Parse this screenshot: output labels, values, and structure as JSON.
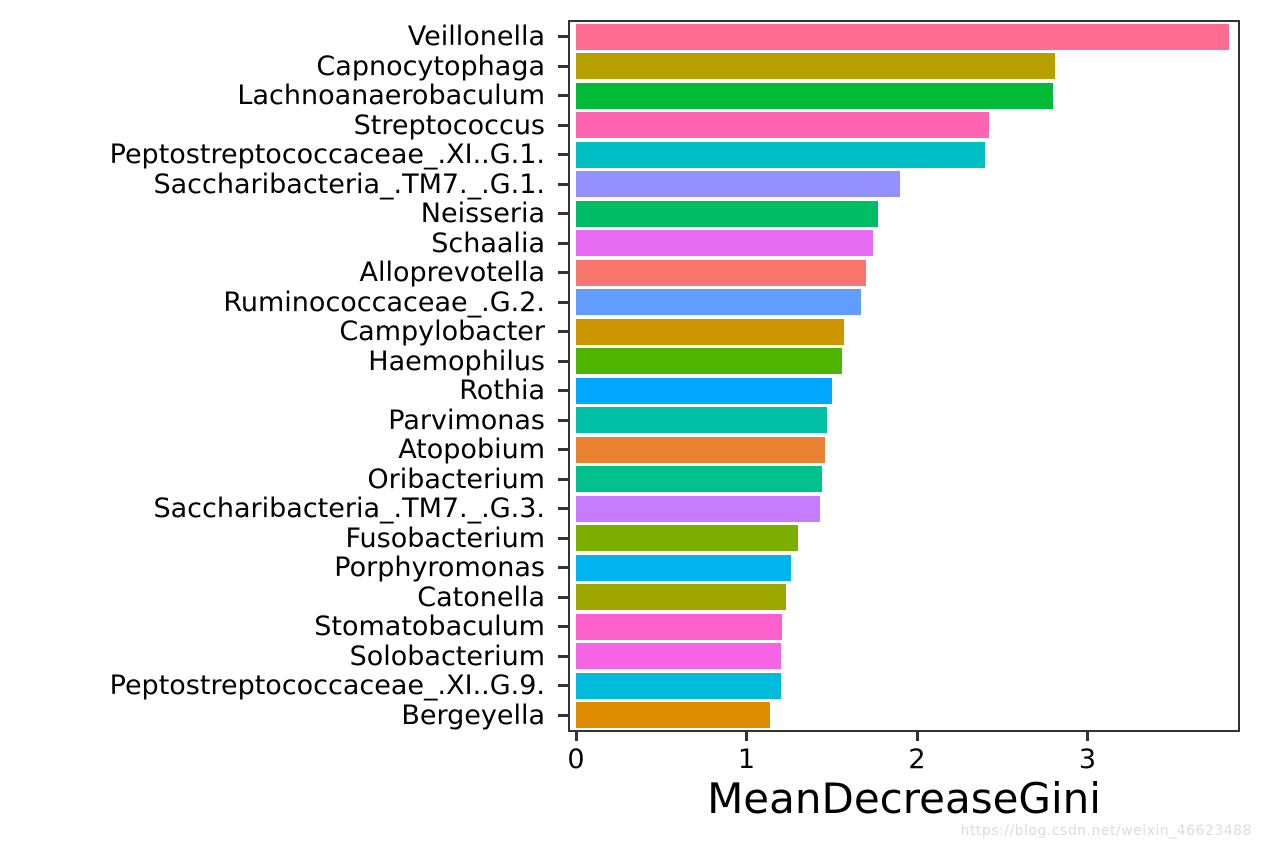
{
  "chart_data": {
    "type": "bar",
    "orientation": "horizontal",
    "title": "",
    "xlabel": "MeanDecreaseGini",
    "ylabel": "",
    "x_ticks": [
      0,
      1,
      2,
      3
    ],
    "xlim": [
      0,
      3.88
    ],
    "grid": "off",
    "legend": "none",
    "categories": [
      "Veillonella",
      "Capnocytophaga",
      "Lachnoanaerobaculum",
      "Streptococcus",
      "Peptostreptococcaceae_.XI..G.1.",
      "Saccharibacteria_.TM7._.G.1.",
      "Neisseria",
      "Schaalia",
      "Alloprevotella",
      "Ruminococcaceae_.G.2.",
      "Campylobacter",
      "Haemophilus",
      "Rothia",
      "Parvimonas",
      "Atopobium",
      "Oribacterium",
      "Saccharibacteria_.TM7._.G.3.",
      "Fusobacterium",
      "Porphyromonas",
      "Catonella",
      "Stomatobaculum",
      "Solobacterium",
      "Peptostreptococcaceae_.XI..G.9.",
      "Bergeyella"
    ],
    "values": [
      3.83,
      2.81,
      2.8,
      2.42,
      2.4,
      1.9,
      1.77,
      1.74,
      1.7,
      1.67,
      1.57,
      1.56,
      1.5,
      1.47,
      1.46,
      1.44,
      1.43,
      1.3,
      1.26,
      1.23,
      1.21,
      1.2,
      1.2,
      1.14
    ],
    "colors": [
      "#FF6C91",
      "#B79F00",
      "#00BA38",
      "#FF64B0",
      "#00BFC4",
      "#9590FF",
      "#00BE67",
      "#E76BF3",
      "#F8766D",
      "#619CFF",
      "#CD9600",
      "#4FB400",
      "#00A9FF",
      "#00C1A7",
      "#EA8331",
      "#00C08B",
      "#C77CFF",
      "#7CAE00",
      "#00B4F0",
      "#9DA700",
      "#FF61CC",
      "#F564E3",
      "#00BBDC",
      "#DE8C00"
    ]
  },
  "style": {
    "panel_border": "#333333",
    "tick_color": "#333333",
    "text_color": "#000000",
    "watermark_color": "#dcdcdc",
    "background": "#ffffff"
  },
  "watermark": "https://blog.csdn.net/weixin_46623488"
}
